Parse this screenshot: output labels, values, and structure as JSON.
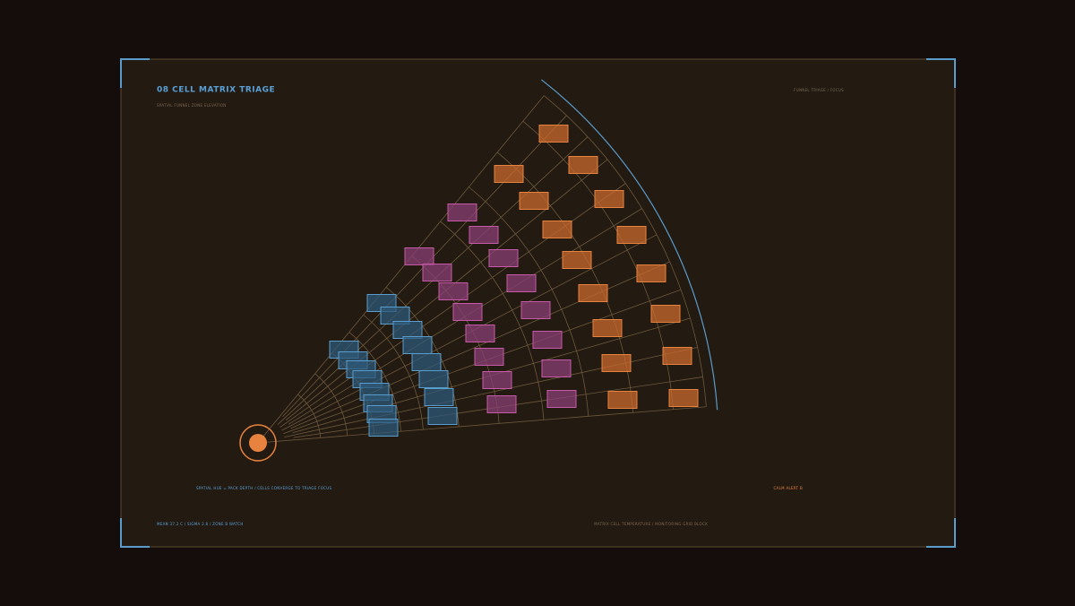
{
  "header": {
    "title": "08  CELL MATRIX TRIAGE",
    "subtitle": "SPATIAL FUNNEL ZONE ELEVATION",
    "corner_label": "FUNNEL TRIAGE / FOCUS"
  },
  "footer": {
    "legend_note": "SPATIAL HUE = PACK DEPTH / CELLS CONVERGE TO TRIAGE FOCUS",
    "status": "CALM ALERT B",
    "stats": "MEAN 37.2 C  /  SIGMA 2.8  /  ZONE B WATCH",
    "caption": "MATRIX CELL TEMPERATURE / MONITORING GRID BLOCK"
  }
}
